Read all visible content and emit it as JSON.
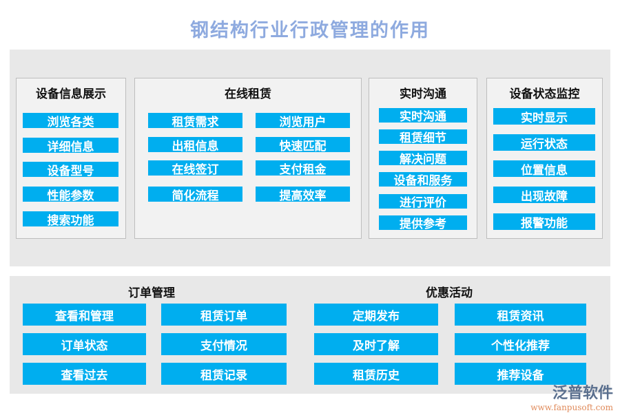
{
  "title": "钢结构行业行政管理的作用",
  "top": [
    {
      "title": "设备信息展示",
      "items": [
        "浏览各类",
        "详细信息",
        "设备型号",
        "性能参数",
        "搜索功能"
      ]
    },
    {
      "title": "在线租赁",
      "items": [
        "租赁需求",
        "浏览用户",
        "出租信息",
        "快速匹配",
        "在线签订",
        "支付租金",
        "简化流程",
        "提高效率"
      ]
    },
    {
      "title": "实时沟通",
      "items": [
        "实时沟通",
        "租赁细节",
        "解决问题",
        "设备和服务",
        "进行评价",
        "提供参考"
      ]
    },
    {
      "title": "设备状态监控",
      "items": [
        "实时显示",
        "运行状态",
        "位置信息",
        "出现故障",
        "报警功能"
      ]
    }
  ],
  "bottom": [
    {
      "title": "订单管理",
      "items": [
        "查看和管理",
        "租赁订单",
        "订单状态",
        "支付情况",
        "查看过去",
        "租赁记录"
      ]
    },
    {
      "title": "优惠活动",
      "items": [
        "定期发布",
        "租赁资讯",
        "及时了解",
        "个性化推荐",
        "租赁历史",
        "推荐设备"
      ]
    }
  ],
  "logo": {
    "name": "泛普软件",
    "url": "www.fanpusoft.com"
  },
  "colors": {
    "accent": "#00aeef",
    "title": "#8eaadf",
    "panel": "#e8e8e8"
  }
}
